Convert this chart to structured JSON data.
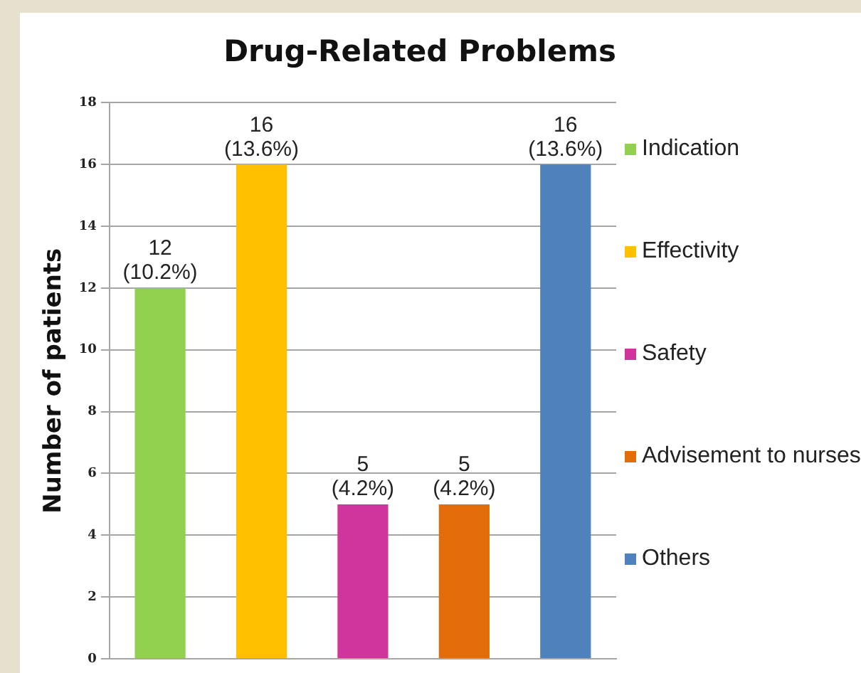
{
  "chart_data": {
    "type": "bar",
    "title": "Drug-Related Problems",
    "ylabel": "Number of patients",
    "categories": [
      null,
      null,
      null,
      null,
      null
    ],
    "series": [
      {
        "name": "Indication",
        "color": "#92d050",
        "values": [
          12,
          null,
          null,
          null,
          null
        ],
        "value_labels": [
          "12\n(10.2%)",
          null,
          null,
          null,
          null
        ]
      },
      {
        "name": "Effectivity",
        "color": "#ffc000",
        "values": [
          null,
          16,
          null,
          null,
          null
        ],
        "value_labels": [
          null,
          "16\n(13.6%)",
          null,
          null,
          null
        ]
      },
      {
        "name": "Safety",
        "color": "#d0359e",
        "values": [
          null,
          null,
          5,
          null,
          null
        ],
        "value_labels": [
          null,
          null,
          "5\n(4.2%)",
          null,
          null
        ]
      },
      {
        "name": "Advisement to nurses",
        "color": "#e36c0a",
        "values": [
          null,
          null,
          null,
          5,
          null
        ],
        "value_labels": [
          null,
          null,
          null,
          "5\n(4.2%)",
          null
        ]
      },
      {
        "name": "Others",
        "color": "#4f81bd",
        "values": [
          null,
          null,
          null,
          null,
          16
        ],
        "value_labels": [
          null,
          null,
          null,
          null,
          "16\n(13.6%)"
        ]
      }
    ],
    "ylim": [
      0,
      18
    ],
    "yticks": [
      0,
      2,
      4,
      6,
      8,
      10,
      12,
      14,
      16,
      18
    ],
    "grid": "y",
    "legend": "right",
    "tick_labels": "y"
  }
}
